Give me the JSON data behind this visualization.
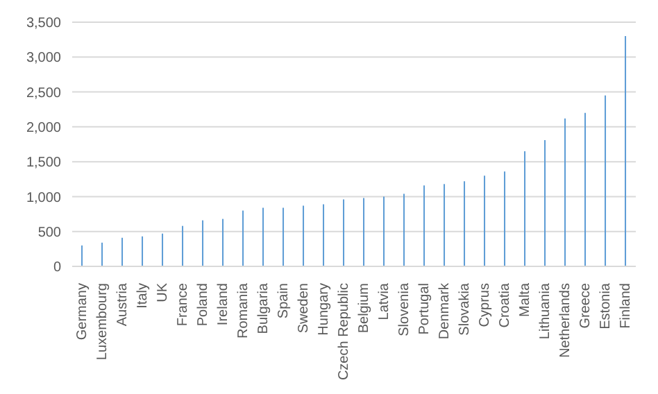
{
  "chart_data": {
    "type": "bar",
    "categories": [
      "Germany",
      "Luxembourg",
      "Austria",
      "Italy",
      "UK",
      "France",
      "Poland",
      "Ireland",
      "Romania",
      "Bulgaria",
      "Spain",
      "Sweden",
      "Hungary",
      "Czech Republic",
      "Belgium",
      "Latvia",
      "Slovenia",
      "Portugal",
      "Denmark",
      "Slovakia",
      "Cyprus",
      "Croatia",
      "Malta",
      "Lithuania",
      "Netherlands",
      "Greece",
      "Estonia",
      "Finland"
    ],
    "values": [
      300,
      340,
      410,
      430,
      470,
      580,
      660,
      680,
      800,
      840,
      840,
      870,
      890,
      960,
      980,
      1000,
      1040,
      1160,
      1180,
      1220,
      1300,
      1360,
      1650,
      1810,
      2120,
      2200,
      2450,
      3300
    ],
    "color": "#5b9bd5",
    "ylim": [
      0,
      3500
    ],
    "yticks": [
      {
        "value": 0,
        "label": "0"
      },
      {
        "value": 500,
        "label": "500"
      },
      {
        "value": 1000,
        "label": "1,000"
      },
      {
        "value": 1500,
        "label": "1,500"
      },
      {
        "value": 2000,
        "label": "2,000"
      },
      {
        "value": 2500,
        "label": "2,500"
      },
      {
        "value": 3000,
        "label": "3,000"
      },
      {
        "value": 3500,
        "label": "3,500"
      }
    ],
    "grid": "y"
  }
}
